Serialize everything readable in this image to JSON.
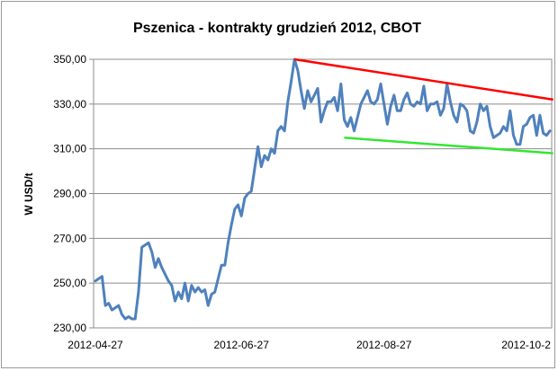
{
  "chart_data": {
    "type": "line",
    "title": "Pszenica - kontrakty grudzień 2012, CBOT",
    "xlabel": "",
    "ylabel": "W USD/t",
    "ylim": [
      230,
      350
    ],
    "yticks": [
      "230,00",
      "250,00",
      "270,00",
      "290,00",
      "310,00",
      "330,00",
      "350,00"
    ],
    "xticks": [
      "2012-04-27",
      "2012-06-27",
      "2012-08-27",
      "2012-10-2"
    ],
    "grid": "horizontal",
    "legend": "none",
    "series": [
      {
        "color": "#4f81bd",
        "values": [
          251,
          252,
          253,
          240,
          241,
          238,
          239,
          240,
          236,
          234,
          235,
          234,
          234,
          246,
          266,
          267,
          268,
          264,
          257,
          261,
          257,
          254,
          251,
          249,
          242,
          246,
          243,
          250,
          242,
          249,
          246,
          248,
          246,
          247,
          240,
          245,
          246,
          252,
          258,
          258,
          268,
          276,
          283,
          285,
          280,
          288,
          290,
          291,
          301,
          311,
          302,
          307,
          305,
          310,
          308,
          318,
          320,
          318,
          331,
          340,
          350,
          345,
          336,
          328,
          336,
          331,
          334,
          337,
          322,
          327,
          331,
          331,
          333,
          327,
          339,
          323,
          320,
          324,
          318,
          324,
          330,
          333,
          336,
          331,
          330,
          332,
          339,
          330,
          321,
          329,
          334,
          327,
          327,
          332,
          335,
          330,
          329,
          331,
          330,
          338,
          327,
          330,
          330,
          331,
          325,
          328,
          339,
          331,
          325,
          322,
          330,
          329,
          327,
          318,
          317,
          322,
          330,
          327,
          329,
          320,
          315,
          316,
          317,
          320,
          318,
          327,
          316,
          312,
          312,
          320,
          321,
          324,
          325,
          316,
          325,
          317,
          316,
          318
        ]
      }
    ],
    "trendlines": [
      {
        "color": "#ff0000",
        "from": [
          60,
          350
        ],
        "to": [
          138,
          332
        ]
      },
      {
        "color": "#33e633",
        "from": [
          75,
          315
        ],
        "to": [
          138,
          308
        ]
      }
    ]
  }
}
